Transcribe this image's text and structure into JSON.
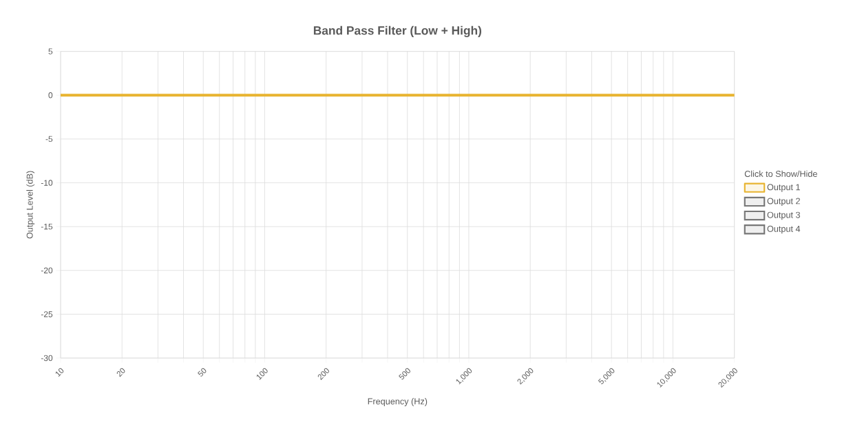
{
  "chart_data": {
    "type": "line",
    "title": "Band Pass Filter (Low + High)",
    "xlabel": "Frequency (Hz)",
    "ylabel": "Output Level (dB)",
    "legend_title": "Click to Show/Hide",
    "log": "x",
    "grid": true,
    "legend": "right",
    "line_style": "solid",
    "xlim": [
      10,
      20000
    ],
    "ylim": [
      -30,
      5
    ],
    "xticks": [
      10,
      20,
      {
        "value": 30,
        "label": null
      },
      {
        "value": 40,
        "label": null
      },
      50,
      {
        "value": 60,
        "label": null
      },
      {
        "value": 70,
        "label": null
      },
      {
        "value": 80,
        "label": null
      },
      {
        "value": 90,
        "label": null
      },
      100,
      200,
      {
        "value": 300,
        "label": null
      },
      {
        "value": 400,
        "label": null
      },
      500,
      {
        "value": 600,
        "label": null
      },
      {
        "value": 700,
        "label": null
      },
      {
        "value": 800,
        "label": null
      },
      {
        "value": 900,
        "label": null
      },
      {
        "value": 1000,
        "label": "1,000"
      },
      {
        "value": 2000,
        "label": "2,000"
      },
      {
        "value": 3000,
        "label": null
      },
      {
        "value": 4000,
        "label": null
      },
      {
        "value": 5000,
        "label": "5,000"
      },
      {
        "value": 6000,
        "label": null
      },
      {
        "value": 7000,
        "label": null
      },
      {
        "value": 8000,
        "label": null
      },
      {
        "value": 9000,
        "label": null
      },
      {
        "value": 10000,
        "label": "10,000"
      },
      {
        "value": 20000,
        "label": "20,000"
      }
    ],
    "yticks": [
      5,
      0,
      -5,
      -10,
      -15,
      -20,
      -25,
      -30
    ],
    "series": [
      {
        "name": "Output 1",
        "color": "#e8b430",
        "x": [
          10,
          20000
        ],
        "values": [
          0,
          0
        ]
      },
      {
        "name": "Output 2",
        "color": "#777777"
      },
      {
        "name": "Output 3",
        "color": "#777777"
      },
      {
        "name": "Output 4",
        "color": "#777777"
      }
    ]
  }
}
